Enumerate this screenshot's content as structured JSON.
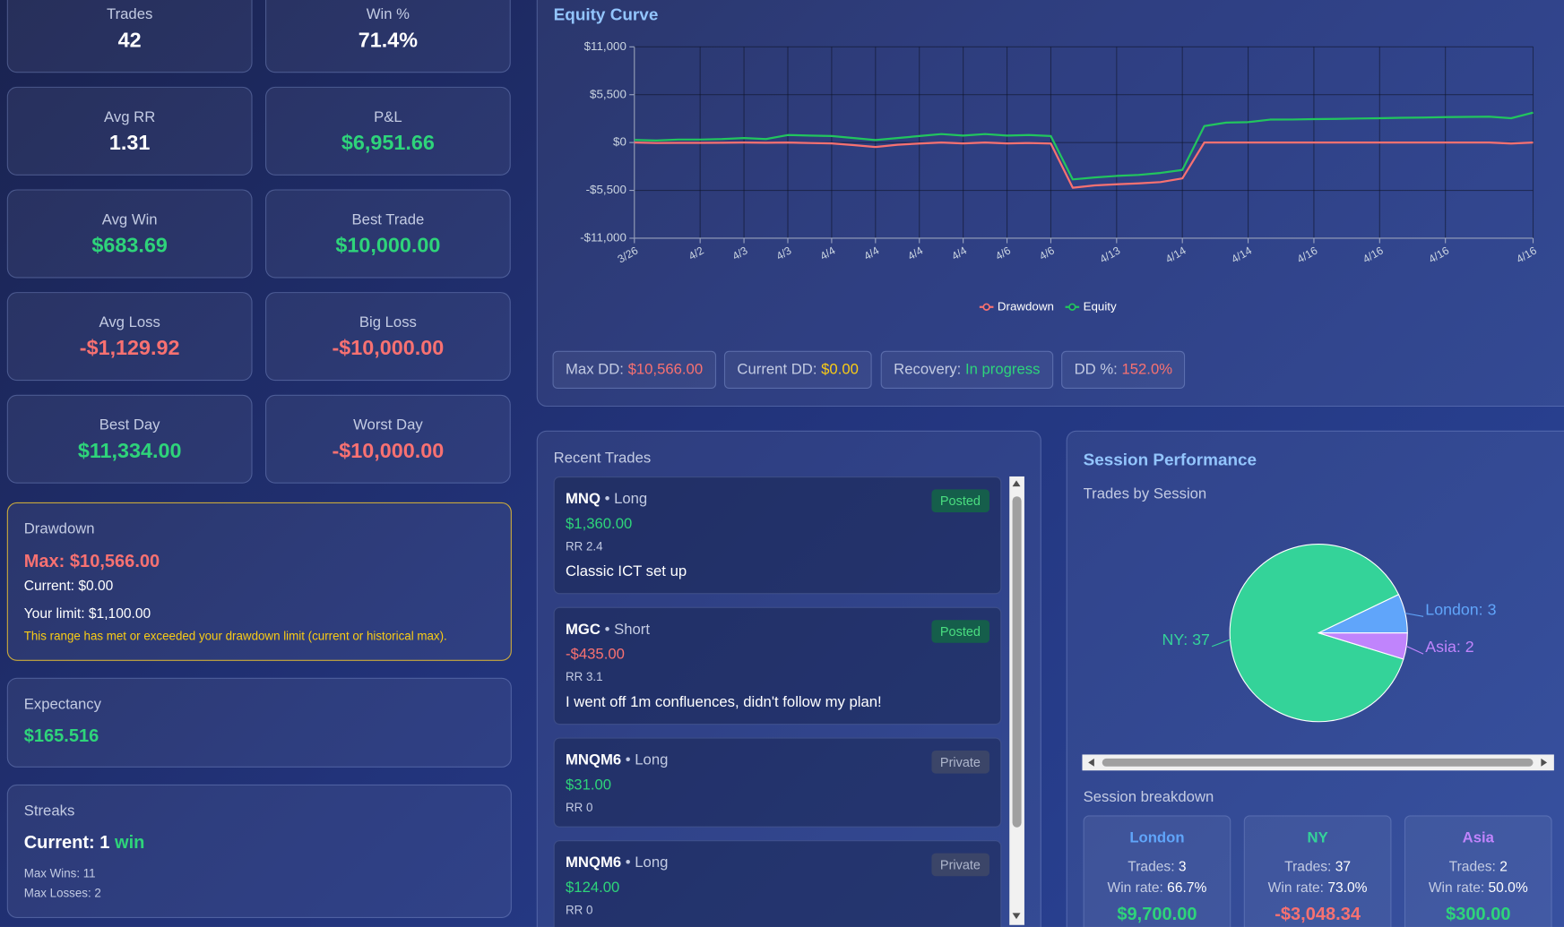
{
  "stats": [
    {
      "label": "Trades",
      "value": "42"
    },
    {
      "label": "Win %",
      "value": "71.4%"
    },
    {
      "label": "Avg RR",
      "value": "1.31"
    },
    {
      "label": "P&L",
      "value": "$6,951.66"
    },
    {
      "label": "Avg Win",
      "value": "$683.69"
    },
    {
      "label": "Best Trade",
      "value": "$10,000.00"
    },
    {
      "label": "Avg Loss",
      "value": "-$1,129.92"
    },
    {
      "label": "Big Loss",
      "value": "-$10,000.00"
    },
    {
      "label": "Best Day",
      "value": "$11,334.00"
    },
    {
      "label": "Worst Day",
      "value": "-$10,000.00"
    }
  ],
  "drawdown": {
    "title": "Drawdown",
    "max": "Max: $10,566.00",
    "current": "Current: $0.00",
    "limit": "Your limit: $1,100.00",
    "warning": "This range has met or exceeded your drawdown limit (current or historical max)."
  },
  "expectancy": {
    "title": "Expectancy",
    "value": "$165.516"
  },
  "streaks": {
    "title": "Streaks",
    "current_label": "Current: 1",
    "current_type": "win",
    "max_wins": "Max Wins: 11",
    "max_losses": "Max Losses: 2"
  },
  "dd_stats": [
    {
      "label": "Max DD:",
      "value": "$10,566.00"
    },
    {
      "label": "Current DD:",
      "value": "$0.00"
    },
    {
      "label": "Recovery:",
      "value": "In progress"
    },
    {
      "label": "DD %:",
      "value": "152.0%"
    }
  ],
  "recent_trades": {
    "title": "Recent Trades",
    "trades": [
      {
        "symbol": "MNQ",
        "side": "• Long",
        "pnl": "$1,360.00",
        "rr": "RR 2.4",
        "note": "Classic ICT set up",
        "status": "Posted"
      },
      {
        "symbol": "MGC",
        "side": "• Short",
        "pnl": "-$435.00",
        "rr": "RR 3.1",
        "note": "I went off 1m confluences, didn't follow my plan!",
        "status": "Posted"
      },
      {
        "symbol": "MNQM6",
        "side": "• Long",
        "pnl": "$31.00",
        "rr": "RR 0",
        "status": "Private"
      },
      {
        "symbol": "MNQM6",
        "side": "• Long",
        "pnl": "$124.00",
        "rr": "RR 0",
        "status": "Private"
      }
    ]
  },
  "session": {
    "title": "Session Performance",
    "breakdown_title": "Session breakdown",
    "cards": [
      {
        "name": "London",
        "trades_label": "Trades:",
        "trades": "3",
        "win_label": "Win rate:",
        "win_rate": "66.7%",
        "pnl": "$9,700.00"
      },
      {
        "name": "NY",
        "trades_label": "Trades:",
        "trades": "37",
        "win_label": "Win rate:",
        "win_rate": "73.0%",
        "pnl": "-$3,048.34"
      },
      {
        "name": "Asia",
        "trades_label": "Trades:",
        "trades": "2",
        "win_label": "Win rate:",
        "win_rate": "50.0%",
        "pnl": "$300.00"
      }
    ]
  },
  "chart_data": [
    {
      "type": "line",
      "title": "Equity Curve",
      "categories": [
        "3/26",
        null,
        null,
        "4/2",
        null,
        "4/3",
        null,
        "4/3",
        null,
        "4/4",
        null,
        "4/4",
        null,
        "4/4",
        null,
        "4/4",
        null,
        "4/6",
        null,
        "4/6",
        null,
        null,
        "4/13",
        null,
        null,
        "4/14",
        null,
        null,
        "4/14",
        null,
        null,
        "4/16",
        null,
        null,
        "4/16",
        null,
        null,
        "4/16",
        null,
        null,
        null,
        "4/16"
      ],
      "series": [
        {
          "name": "Drawdown",
          "color": "#f87171",
          "values": [
            0,
            -60,
            -40,
            -40,
            -20,
            0,
            -20,
            0,
            -60,
            -100,
            -300,
            -520,
            -250,
            -120,
            0,
            -100,
            0,
            -100,
            -60,
            -120,
            -5200,
            -4930,
            -4800,
            -4700,
            -4550,
            -4130,
            0,
            0,
            0,
            0,
            0,
            0,
            0,
            0,
            0,
            0,
            0,
            0,
            0,
            0,
            -110,
            0
          ]
        },
        {
          "name": "Equity",
          "color": "#22c55e",
          "values": [
            300,
            230,
            340,
            340,
            400,
            520,
            400,
            860,
            800,
            750,
            520,
            290,
            520,
            750,
            970,
            800,
            970,
            800,
            860,
            750,
            -4240,
            -4010,
            -3840,
            -3720,
            -3500,
            -3150,
            1890,
            2290,
            2350,
            2630,
            2650,
            2690,
            2720,
            2760,
            2800,
            2840,
            2880,
            2920,
            2950,
            2980,
            2800,
            3440
          ]
        }
      ],
      "ylim": [
        -11000,
        11000
      ],
      "yticks": [
        {
          "value": -11000,
          "label": "-$11,000"
        },
        {
          "value": -5500,
          "label": "-$5,500"
        },
        {
          "value": 0,
          "label": "$0"
        },
        {
          "value": 5500,
          "label": "$5,500"
        },
        {
          "value": 11000,
          "label": "$11,000"
        }
      ],
      "grid": true,
      "legend": "bottom"
    },
    {
      "type": "pie",
      "title": "Trades by Session",
      "categories": [
        "London",
        "NY",
        "Asia"
      ],
      "values": [
        3,
        37,
        2
      ],
      "value_labels": [
        "London: 3",
        "NY: 37",
        "Asia: 2"
      ],
      "colors": [
        "#60a5fa",
        "#34d399",
        "#c084fc"
      ]
    }
  ]
}
